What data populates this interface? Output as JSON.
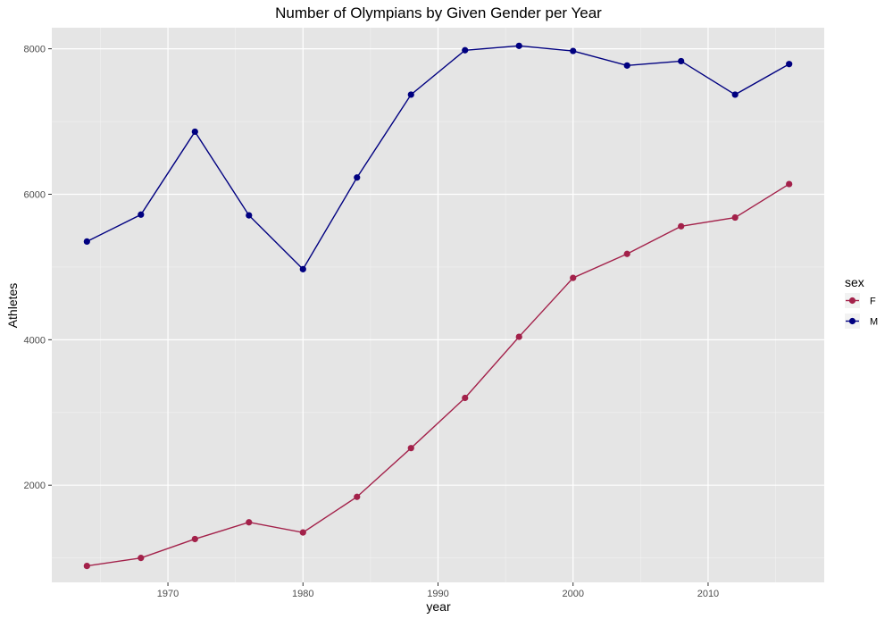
{
  "chart_data": {
    "type": "line",
    "title": "Number of Olympians by Given Gender per Year",
    "xlabel": "year",
    "ylabel": "Athletes",
    "xlim": [
      1961.4,
      2018.6
    ],
    "ylim": [
      664,
      8290
    ],
    "x_ticks": [
      1970,
      1980,
      1990,
      2000,
      2010
    ],
    "x_tick_labels": [
      "1970",
      "1980",
      "1990",
      "2000",
      "2010"
    ],
    "y_ticks": [
      2000,
      4000,
      6000,
      8000
    ],
    "y_tick_labels": [
      "2000",
      "4000",
      "6000",
      "8000"
    ],
    "grid": true,
    "background": "#e5e5e5",
    "legend": {
      "title": "sex",
      "position": "right"
    },
    "x": [
      1964,
      1968,
      1972,
      1976,
      1980,
      1984,
      1988,
      1992,
      1996,
      2000,
      2004,
      2008,
      2012,
      2016
    ],
    "series": [
      {
        "name": "F",
        "color": "#a3214a",
        "values": [
          890,
          1000,
          1260,
          1490,
          1350,
          1840,
          2510,
          3200,
          4040,
          4850,
          5180,
          5560,
          5680,
          6140
        ]
      },
      {
        "name": "M",
        "color": "#000080",
        "values": [
          5350,
          5720,
          6860,
          5710,
          4970,
          6230,
          7370,
          7980,
          8040,
          7970,
          7770,
          7830,
          7370,
          7790
        ]
      }
    ]
  }
}
